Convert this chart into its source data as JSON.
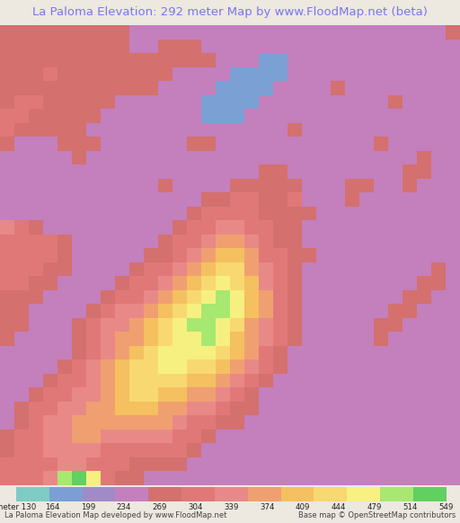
{
  "title": "La Paloma Elevation: 292 meter Map by www.FloodMap.net (beta)",
  "title_color": "#7777ee",
  "title_fontsize": 9.5,
  "background_color": "#ede8e0",
  "colorbar_labels": [
    "meter 130",
    "164",
    "199",
    "234",
    "269",
    "304",
    "339",
    "374",
    "409",
    "444",
    "479",
    "514",
    "549"
  ],
  "colorbar_colors": [
    "#7eccc4",
    "#7b9fd4",
    "#a08ac8",
    "#c47fbe",
    "#d4706e",
    "#e07878",
    "#e88888",
    "#f0a070",
    "#f4c060",
    "#f8d870",
    "#f8f080",
    "#a8e870",
    "#60d060"
  ],
  "bottom_left_text": "La Paloma Elevation Map developed by www.FloodMap.net",
  "bottom_right_text": "Base map © OpenStreetMap contributors",
  "elev_min": 130,
  "elev_max": 549,
  "grid": [
    [
      4,
      4,
      4,
      4,
      4,
      4,
      4,
      4,
      4,
      3,
      3,
      3,
      3,
      3,
      3,
      3,
      3,
      3,
      3,
      3,
      3,
      3,
      3,
      3,
      3,
      3,
      3,
      3,
      3,
      3,
      3,
      4
    ],
    [
      4,
      4,
      4,
      4,
      4,
      4,
      4,
      4,
      4,
      3,
      3,
      4,
      4,
      4,
      3,
      3,
      3,
      3,
      3,
      3,
      3,
      3,
      3,
      3,
      3,
      3,
      3,
      3,
      3,
      3,
      3,
      3
    ],
    [
      4,
      4,
      4,
      4,
      4,
      4,
      4,
      4,
      4,
      4,
      4,
      4,
      4,
      4,
      4,
      3,
      3,
      3,
      1,
      1,
      3,
      3,
      3,
      3,
      3,
      3,
      3,
      3,
      3,
      3,
      3,
      3
    ],
    [
      4,
      4,
      4,
      5,
      4,
      4,
      4,
      4,
      4,
      4,
      4,
      4,
      3,
      3,
      3,
      3,
      1,
      1,
      1,
      1,
      3,
      3,
      3,
      3,
      3,
      3,
      3,
      3,
      3,
      3,
      3,
      3
    ],
    [
      4,
      4,
      4,
      4,
      4,
      4,
      4,
      4,
      4,
      4,
      4,
      3,
      3,
      3,
      3,
      1,
      1,
      1,
      1,
      3,
      3,
      3,
      3,
      4,
      3,
      3,
      3,
      3,
      3,
      3,
      3,
      3
    ],
    [
      4,
      5,
      5,
      4,
      4,
      4,
      4,
      4,
      3,
      3,
      3,
      3,
      3,
      3,
      1,
      1,
      1,
      1,
      3,
      3,
      3,
      3,
      3,
      3,
      3,
      3,
      3,
      4,
      3,
      3,
      3,
      3
    ],
    [
      5,
      5,
      4,
      4,
      4,
      4,
      4,
      3,
      3,
      3,
      3,
      3,
      3,
      3,
      1,
      1,
      1,
      3,
      3,
      3,
      3,
      3,
      3,
      3,
      3,
      3,
      3,
      3,
      3,
      3,
      3,
      3
    ],
    [
      5,
      4,
      4,
      4,
      4,
      4,
      3,
      3,
      3,
      3,
      3,
      3,
      3,
      3,
      3,
      3,
      3,
      3,
      3,
      3,
      4,
      3,
      3,
      3,
      3,
      3,
      3,
      3,
      3,
      3,
      3,
      3
    ],
    [
      4,
      3,
      3,
      3,
      4,
      4,
      4,
      3,
      3,
      3,
      3,
      3,
      3,
      4,
      4,
      3,
      3,
      3,
      3,
      3,
      3,
      3,
      3,
      3,
      3,
      3,
      4,
      3,
      3,
      3,
      3,
      3
    ],
    [
      3,
      3,
      3,
      3,
      3,
      4,
      3,
      3,
      3,
      3,
      3,
      3,
      3,
      3,
      3,
      3,
      3,
      3,
      3,
      3,
      3,
      3,
      3,
      3,
      3,
      3,
      3,
      3,
      3,
      4,
      3,
      3
    ],
    [
      3,
      3,
      3,
      3,
      3,
      3,
      3,
      3,
      3,
      3,
      3,
      3,
      3,
      3,
      3,
      3,
      3,
      3,
      4,
      4,
      3,
      3,
      3,
      3,
      3,
      3,
      3,
      3,
      4,
      4,
      3,
      3
    ],
    [
      3,
      3,
      3,
      3,
      3,
      3,
      3,
      3,
      3,
      3,
      3,
      4,
      3,
      3,
      3,
      3,
      4,
      4,
      4,
      4,
      4,
      3,
      3,
      3,
      4,
      4,
      3,
      3,
      4,
      3,
      3,
      3
    ],
    [
      3,
      3,
      3,
      3,
      3,
      3,
      3,
      3,
      3,
      3,
      3,
      3,
      3,
      3,
      4,
      4,
      5,
      5,
      4,
      4,
      5,
      3,
      3,
      3,
      4,
      3,
      3,
      3,
      3,
      3,
      3,
      3
    ],
    [
      3,
      3,
      3,
      3,
      3,
      3,
      3,
      3,
      3,
      3,
      3,
      3,
      3,
      4,
      5,
      5,
      5,
      5,
      4,
      4,
      4,
      4,
      3,
      3,
      3,
      3,
      3,
      3,
      3,
      3,
      3,
      3
    ],
    [
      6,
      5,
      4,
      3,
      3,
      3,
      3,
      3,
      3,
      3,
      3,
      3,
      4,
      5,
      5,
      6,
      6,
      5,
      5,
      4,
      4,
      3,
      3,
      3,
      3,
      3,
      3,
      3,
      3,
      3,
      3,
      3
    ],
    [
      5,
      5,
      5,
      5,
      4,
      3,
      3,
      3,
      3,
      3,
      3,
      4,
      5,
      5,
      6,
      7,
      7,
      6,
      5,
      4,
      4,
      3,
      3,
      3,
      3,
      3,
      3,
      3,
      3,
      3,
      3,
      3
    ],
    [
      5,
      5,
      5,
      5,
      4,
      3,
      3,
      3,
      3,
      3,
      4,
      4,
      5,
      6,
      7,
      8,
      8,
      7,
      5,
      5,
      4,
      4,
      3,
      3,
      3,
      3,
      3,
      3,
      3,
      3,
      3,
      3
    ],
    [
      5,
      5,
      5,
      4,
      4,
      3,
      3,
      3,
      3,
      4,
      5,
      5,
      6,
      7,
      8,
      9,
      9,
      7,
      6,
      5,
      4,
      3,
      3,
      3,
      3,
      3,
      3,
      3,
      3,
      3,
      4,
      3
    ],
    [
      5,
      5,
      4,
      4,
      3,
      3,
      3,
      3,
      4,
      5,
      5,
      6,
      7,
      8,
      9,
      10,
      9,
      8,
      6,
      5,
      4,
      3,
      3,
      3,
      3,
      3,
      3,
      3,
      3,
      4,
      4,
      3
    ],
    [
      4,
      4,
      4,
      3,
      3,
      3,
      3,
      4,
      5,
      5,
      6,
      7,
      8,
      9,
      10,
      11,
      10,
      8,
      7,
      5,
      4,
      3,
      3,
      3,
      3,
      3,
      3,
      3,
      4,
      4,
      3,
      3
    ],
    [
      4,
      4,
      3,
      3,
      3,
      3,
      4,
      5,
      6,
      6,
      7,
      8,
      9,
      10,
      11,
      11,
      10,
      8,
      7,
      5,
      4,
      3,
      3,
      3,
      3,
      3,
      3,
      4,
      4,
      3,
      3,
      3
    ],
    [
      4,
      4,
      3,
      3,
      3,
      4,
      5,
      6,
      6,
      7,
      8,
      9,
      10,
      11,
      11,
      10,
      9,
      7,
      6,
      5,
      4,
      3,
      3,
      3,
      3,
      3,
      4,
      4,
      3,
      3,
      3,
      3
    ],
    [
      4,
      3,
      3,
      3,
      3,
      4,
      5,
      6,
      7,
      7,
      8,
      9,
      10,
      10,
      11,
      10,
      8,
      7,
      6,
      5,
      4,
      3,
      3,
      3,
      3,
      3,
      4,
      3,
      3,
      3,
      3,
      3
    ],
    [
      3,
      3,
      3,
      3,
      3,
      4,
      5,
      6,
      7,
      8,
      9,
      10,
      10,
      10,
      10,
      9,
      8,
      7,
      5,
      4,
      3,
      3,
      3,
      3,
      3,
      3,
      3,
      3,
      3,
      3,
      3,
      3
    ],
    [
      3,
      3,
      3,
      3,
      4,
      5,
      6,
      7,
      8,
      9,
      9,
      10,
      10,
      9,
      9,
      8,
      7,
      6,
      5,
      4,
      3,
      3,
      3,
      3,
      3,
      3,
      3,
      3,
      3,
      3,
      3,
      3
    ],
    [
      3,
      3,
      3,
      4,
      5,
      5,
      6,
      7,
      8,
      9,
      9,
      9,
      9,
      8,
      8,
      7,
      6,
      5,
      4,
      3,
      3,
      3,
      3,
      3,
      3,
      3,
      3,
      3,
      3,
      3,
      3,
      3
    ],
    [
      3,
      3,
      4,
      5,
      5,
      6,
      6,
      7,
      8,
      9,
      9,
      8,
      8,
      7,
      7,
      6,
      5,
      4,
      3,
      3,
      3,
      3,
      3,
      3,
      3,
      3,
      3,
      3,
      3,
      3,
      3,
      3
    ],
    [
      3,
      4,
      5,
      5,
      6,
      6,
      7,
      7,
      8,
      8,
      8,
      7,
      7,
      6,
      6,
      5,
      4,
      4,
      3,
      3,
      3,
      3,
      3,
      3,
      3,
      3,
      3,
      3,
      3,
      3,
      3,
      3
    ],
    [
      3,
      4,
      5,
      6,
      6,
      7,
      7,
      7,
      7,
      7,
      7,
      7,
      6,
      5,
      5,
      4,
      4,
      3,
      3,
      3,
      3,
      3,
      3,
      3,
      3,
      3,
      3,
      3,
      3,
      3,
      3,
      3
    ],
    [
      4,
      5,
      5,
      6,
      6,
      7,
      7,
      6,
      6,
      6,
      6,
      6,
      5,
      5,
      4,
      3,
      3,
      3,
      3,
      3,
      3,
      3,
      3,
      3,
      3,
      3,
      3,
      3,
      3,
      3,
      3,
      3
    ],
    [
      4,
      5,
      5,
      6,
      6,
      6,
      6,
      5,
      5,
      5,
      5,
      5,
      5,
      4,
      3,
      3,
      3,
      3,
      3,
      3,
      3,
      3,
      3,
      3,
      3,
      3,
      3,
      3,
      3,
      3,
      3,
      3
    ],
    [
      5,
      5,
      5,
      5,
      6,
      6,
      5,
      5,
      5,
      4,
      4,
      4,
      4,
      3,
      3,
      3,
      3,
      3,
      3,
      3,
      3,
      3,
      3,
      3,
      3,
      3,
      3,
      3,
      3,
      3,
      3,
      3
    ],
    [
      5,
      5,
      5,
      6,
      11,
      12,
      10,
      5,
      4,
      4,
      3,
      3,
      3,
      3,
      3,
      3,
      3,
      3,
      3,
      3,
      3,
      3,
      3,
      3,
      3,
      3,
      3,
      3,
      3,
      3,
      3,
      3
    ]
  ]
}
